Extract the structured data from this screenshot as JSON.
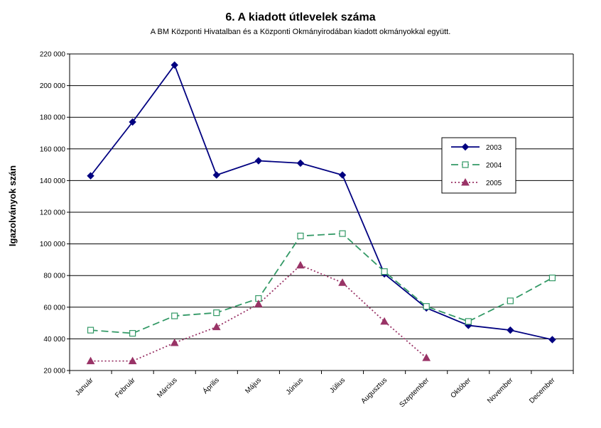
{
  "chart_data": {
    "type": "line",
    "title": "6. A  kiadott útlevelek száma",
    "subtitle": "A BM Központi Hivatalban és a Központi Okmányirodában kiadott okmányokkal együtt.",
    "ylabel": "Igazolványok szán",
    "xlabel": "",
    "ylim": [
      20000,
      220000
    ],
    "ytick_step": 20000,
    "ytick_labels": [
      "20 000",
      "40 000",
      "60 000",
      "80 000",
      "100 000",
      "120 000",
      "140 000",
      "160 000",
      "180 000",
      "200 000",
      "220 000"
    ],
    "grid": true,
    "legend_position": "right",
    "categories": [
      "Január",
      "Február",
      "Március",
      "Április",
      "Május",
      "Június",
      "Július",
      "Augusztus",
      "Szeptember",
      "Október",
      "November",
      "December"
    ],
    "series": [
      {
        "name": "2003",
        "color": "#000080",
        "dash": "solid",
        "marker": "diamond",
        "values": [
          143000,
          177000,
          213000,
          143500,
          152500,
          151000,
          143500,
          81000,
          59500,
          48500,
          45500,
          39500
        ]
      },
      {
        "name": "2004",
        "color": "#339966",
        "dash": "long-dash",
        "marker": "square",
        "values": [
          45500,
          43500,
          54500,
          56500,
          65500,
          105000,
          106500,
          82500,
          60500,
          51000,
          64000,
          78500
        ]
      },
      {
        "name": "2005",
        "color": "#993366",
        "dash": "dotted",
        "marker": "triangle",
        "values": [
          26000,
          26000,
          37500,
          47500,
          62000,
          86500,
          75500,
          51000,
          28000,
          null,
          null,
          null
        ]
      }
    ]
  }
}
